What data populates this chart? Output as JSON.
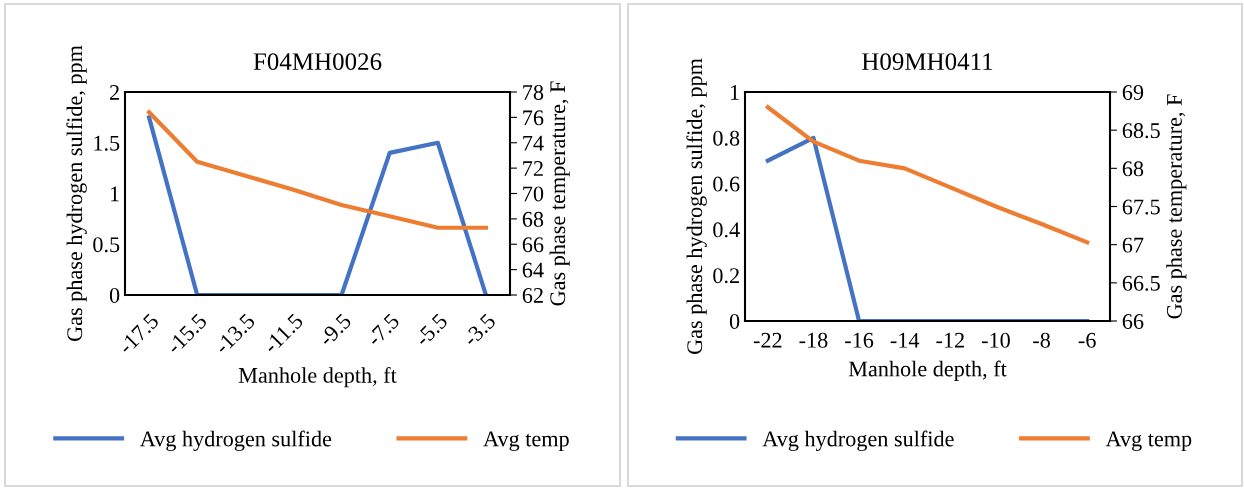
{
  "chart_data": [
    {
      "type": "line",
      "title": "F04MH0026",
      "xlabel": "Manhole depth, ft",
      "ylabel": "Gas phase hydrogen sulfide, ppm",
      "y2label": "Gas phase temperature, F",
      "categories": [
        "-17.5",
        "-15.5",
        "-13.5",
        "-11.5",
        "-9.5",
        "-7.5",
        "-5.5",
        "-3.5"
      ],
      "ylim": [
        0,
        2
      ],
      "yticks": [
        0,
        0.5,
        1,
        1.5,
        2
      ],
      "y2lim": [
        62,
        78
      ],
      "y2ticks": [
        62,
        64,
        66,
        68,
        70,
        72,
        74,
        76,
        78
      ],
      "legend": "bottom",
      "grid": false,
      "series": [
        {
          "name": "Avg hydrogen sulfide",
          "color": "#4472c4",
          "values": [
            1.75,
            0,
            0,
            0,
            0,
            1.4,
            1.5,
            0
          ]
        },
        {
          "name": "Avg temp",
          "color": "#ed7d31",
          "axis": "y2",
          "values": [
            76.4,
            72.5,
            71.4,
            70.3,
            69.1,
            68.2,
            67.3,
            67.3
          ]
        }
      ]
    },
    {
      "type": "line",
      "title": "H09MH0411",
      "xlabel": "Manhole depth, ft",
      "ylabel": "Gas phase hydrogen sulfide, ppm",
      "y2label": "Gas phase temperature, F",
      "categories": [
        "-22",
        "-18",
        "-16",
        "-14",
        "-12",
        "-10",
        "-8",
        "-6"
      ],
      "ylim": [
        0,
        1
      ],
      "yticks": [
        0,
        0.2,
        0.4,
        0.6,
        0.8,
        1
      ],
      "y2lim": [
        66,
        69
      ],
      "y2ticks": [
        66,
        66.5,
        67,
        67.5,
        68,
        68.5,
        69
      ],
      "legend": "bottom",
      "grid": false,
      "series": [
        {
          "name": "Avg hydrogen sulfide",
          "color": "#4472c4",
          "values": [
            0.7,
            0.8,
            0,
            0,
            0,
            0,
            0,
            0
          ]
        },
        {
          "name": "Avg temp",
          "color": "#ed7d31",
          "axis": "y2",
          "values": [
            68.8,
            68.35,
            68.1,
            68.0,
            67.75,
            67.5,
            67.27,
            67.03
          ]
        }
      ]
    }
  ]
}
